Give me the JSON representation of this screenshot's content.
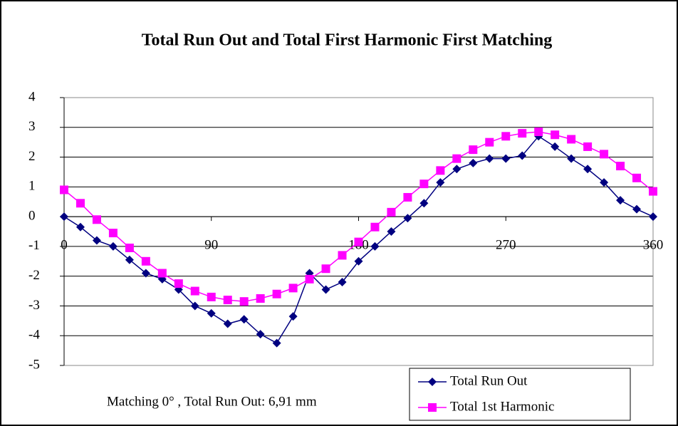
{
  "chart_data": {
    "type": "line",
    "title": "Total Run Out and Total First Harmonic First Matching",
    "annotation": "Matching 0° , Total Run Out: 6,91 mm",
    "x": [
      0,
      10,
      20,
      30,
      40,
      50,
      60,
      70,
      80,
      90,
      100,
      110,
      120,
      130,
      140,
      150,
      160,
      170,
      180,
      190,
      200,
      210,
      220,
      230,
      240,
      250,
      260,
      270,
      280,
      290,
      300,
      310,
      320,
      330,
      340,
      350,
      360
    ],
    "series": [
      {
        "name": "Total Run Out",
        "color": "#000080",
        "marker": "diamond",
        "values": [
          0,
          -0.35,
          -0.8,
          -1.0,
          -1.45,
          -1.9,
          -2.1,
          -2.45,
          -3.0,
          -3.25,
          -3.6,
          -3.45,
          -3.95,
          -4.25,
          -3.35,
          -1.9,
          -2.45,
          -2.2,
          -1.5,
          -1.0,
          -0.5,
          -0.05,
          0.45,
          1.15,
          1.6,
          1.8,
          1.95,
          1.95,
          2.05,
          2.7,
          2.35,
          1.95,
          1.6,
          1.15,
          0.55,
          0.25,
          0
        ]
      },
      {
        "name": "Total 1st Harmonic",
        "color": "#ff00ff",
        "marker": "square",
        "values": [
          0.9,
          0.45,
          -0.1,
          -0.55,
          -1.05,
          -1.5,
          -1.9,
          -2.25,
          -2.5,
          -2.7,
          -2.8,
          -2.85,
          -2.75,
          -2.6,
          -2.4,
          -2.1,
          -1.75,
          -1.3,
          -0.85,
          -0.35,
          0.15,
          0.65,
          1.1,
          1.55,
          1.95,
          2.25,
          2.5,
          2.7,
          2.8,
          2.85,
          2.75,
          2.6,
          2.35,
          2.1,
          1.7,
          1.3,
          0.85
        ]
      }
    ],
    "xlim": [
      0,
      360
    ],
    "xticks": [
      0,
      90,
      180,
      270,
      360
    ],
    "ylim": [
      -5,
      4
    ],
    "yticks": [
      -5,
      -4,
      -3,
      -2,
      -1,
      0,
      1,
      2,
      3,
      4
    ],
    "grid": true,
    "legend": "lower right"
  }
}
